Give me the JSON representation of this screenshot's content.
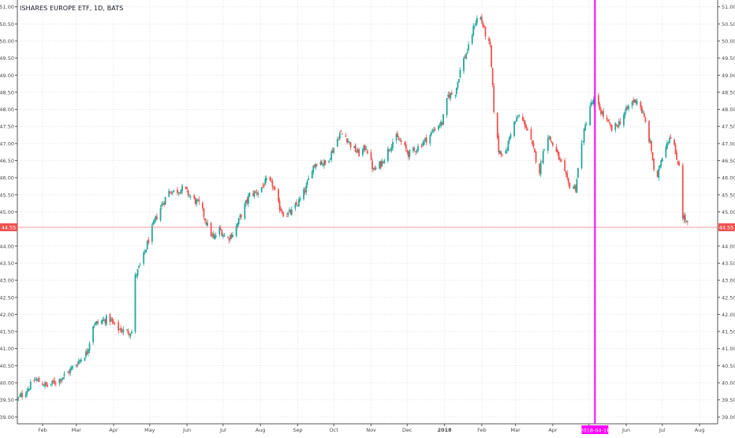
{
  "chart_data": {
    "type": "candlestick",
    "title": "ISHARES EUROPE ETF, 1D, BATS",
    "xlabel": "",
    "ylabel": "",
    "ylim": [
      38.8,
      51.2
    ],
    "y_ticks": [
      39.0,
      39.5,
      40.0,
      40.5,
      41.0,
      41.5,
      42.0,
      42.5,
      43.0,
      43.5,
      44.0,
      44.5,
      45.0,
      45.5,
      46.0,
      46.5,
      47.0,
      47.5,
      48.0,
      48.5,
      49.0,
      49.5,
      50.0,
      50.5,
      51.0
    ],
    "x_ticks": [
      {
        "label": "Feb",
        "day": 21
      },
      {
        "label": "Mar",
        "day": 49
      },
      {
        "label": "Apr",
        "day": 80
      },
      {
        "label": "May",
        "day": 110
      },
      {
        "label": "Jun",
        "day": 141
      },
      {
        "label": "Jul",
        "day": 171
      },
      {
        "label": "Aug",
        "day": 202
      },
      {
        "label": "Sep",
        "day": 233
      },
      {
        "label": "Oct",
        "day": 263
      },
      {
        "label": "Nov",
        "day": 294
      },
      {
        "label": "Dec",
        "day": 324
      },
      {
        "label": "2018",
        "day": 355
      },
      {
        "label": "Feb",
        "day": 386
      },
      {
        "label": "Mar",
        "day": 414
      },
      {
        "label": "Apr",
        "day": 445
      },
      {
        "label": "May",
        "day": 475
      },
      {
        "label": "Jun",
        "day": 506
      },
      {
        "label": "Jul",
        "day": 536
      },
      {
        "label": "Aug",
        "day": 567
      }
    ],
    "xrange": [
      0,
      582
    ],
    "anchors": [
      {
        "day": 0,
        "close": 39.5
      },
      {
        "day": 8,
        "close": 39.8
      },
      {
        "day": 15,
        "close": 40.1
      },
      {
        "day": 25,
        "close": 39.9
      },
      {
        "day": 35,
        "close": 40.1
      },
      {
        "day": 42,
        "close": 40.3
      },
      {
        "day": 50,
        "close": 40.6
      },
      {
        "day": 58,
        "close": 40.9
      },
      {
        "day": 63,
        "close": 41.7
      },
      {
        "day": 70,
        "close": 41.8
      },
      {
        "day": 76,
        "close": 41.9
      },
      {
        "day": 82,
        "close": 41.6
      },
      {
        "day": 90,
        "close": 41.5
      },
      {
        "day": 95,
        "close": 41.5
      },
      {
        "day": 98,
        "close": 43.1
      },
      {
        "day": 104,
        "close": 43.6
      },
      {
        "day": 110,
        "close": 44.3
      },
      {
        "day": 115,
        "close": 44.8
      },
      {
        "day": 120,
        "close": 45.2
      },
      {
        "day": 126,
        "close": 45.6
      },
      {
        "day": 132,
        "close": 45.6
      },
      {
        "day": 138,
        "close": 45.7
      },
      {
        "day": 145,
        "close": 45.4
      },
      {
        "day": 152,
        "close": 45.2
      },
      {
        "day": 158,
        "close": 44.6
      },
      {
        "day": 163,
        "close": 44.2
      },
      {
        "day": 168,
        "close": 44.5
      },
      {
        "day": 174,
        "close": 44.2
      },
      {
        "day": 180,
        "close": 44.4
      },
      {
        "day": 187,
        "close": 45.0
      },
      {
        "day": 193,
        "close": 45.5
      },
      {
        "day": 200,
        "close": 45.6
      },
      {
        "day": 207,
        "close": 45.9
      },
      {
        "day": 212,
        "close": 45.8
      },
      {
        "day": 217,
        "close": 45.2
      },
      {
        "day": 222,
        "close": 44.9
      },
      {
        "day": 228,
        "close": 45.0
      },
      {
        "day": 234,
        "close": 45.3
      },
      {
        "day": 240,
        "close": 45.7
      },
      {
        "day": 245,
        "close": 46.3
      },
      {
        "day": 250,
        "close": 46.5
      },
      {
        "day": 256,
        "close": 46.4
      },
      {
        "day": 262,
        "close": 46.8
      },
      {
        "day": 268,
        "close": 47.3
      },
      {
        "day": 273,
        "close": 47.2
      },
      {
        "day": 278,
        "close": 46.9
      },
      {
        "day": 284,
        "close": 46.7
      },
      {
        "day": 290,
        "close": 46.9
      },
      {
        "day": 296,
        "close": 46.2
      },
      {
        "day": 302,
        "close": 46.4
      },
      {
        "day": 308,
        "close": 46.8
      },
      {
        "day": 314,
        "close": 47.2
      },
      {
        "day": 320,
        "close": 47.0
      },
      {
        "day": 325,
        "close": 46.7
      },
      {
        "day": 330,
        "close": 46.8
      },
      {
        "day": 336,
        "close": 47.0
      },
      {
        "day": 342,
        "close": 47.2
      },
      {
        "day": 348,
        "close": 47.5
      },
      {
        "day": 353,
        "close": 47.6
      },
      {
        "day": 358,
        "close": 48.4
      },
      {
        "day": 364,
        "close": 48.5
      },
      {
        "day": 369,
        "close": 49.3
      },
      {
        "day": 375,
        "close": 49.8
      },
      {
        "day": 380,
        "close": 50.5
      },
      {
        "day": 384,
        "close": 50.8
      },
      {
        "day": 389,
        "close": 50.2
      },
      {
        "day": 393,
        "close": 49.8
      },
      {
        "day": 396,
        "close": 48.0
      },
      {
        "day": 400,
        "close": 46.8
      },
      {
        "day": 406,
        "close": 46.7
      },
      {
        "day": 411,
        "close": 47.5
      },
      {
        "day": 417,
        "close": 47.8
      },
      {
        "day": 423,
        "close": 47.5
      },
      {
        "day": 429,
        "close": 46.8
      },
      {
        "day": 434,
        "close": 46.2
      },
      {
        "day": 440,
        "close": 47.3
      },
      {
        "day": 446,
        "close": 46.9
      },
      {
        "day": 452,
        "close": 46.4
      },
      {
        "day": 458,
        "close": 45.8
      },
      {
        "day": 464,
        "close": 45.7
      },
      {
        "day": 468,
        "close": 46.8
      },
      {
        "day": 472,
        "close": 47.5
      },
      {
        "day": 476,
        "close": 48.1
      },
      {
        "day": 480,
        "close": 48.3
      },
      {
        "day": 484,
        "close": 48.0
      },
      {
        "day": 489,
        "close": 47.7
      },
      {
        "day": 494,
        "close": 47.4
      },
      {
        "day": 500,
        "close": 47.6
      },
      {
        "day": 505,
        "close": 47.9
      },
      {
        "day": 510,
        "close": 48.2
      },
      {
        "day": 516,
        "close": 48.3
      },
      {
        "day": 522,
        "close": 47.6
      },
      {
        "day": 527,
        "close": 46.8
      },
      {
        "day": 531,
        "close": 45.7
      },
      {
        "day": 534,
        "close": 46.4
      },
      {
        "day": 538,
        "close": 46.9
      },
      {
        "day": 542,
        "close": 47.2
      },
      {
        "day": 545,
        "close": 47.3
      },
      {
        "day": 547,
        "close": 46.6
      },
      {
        "day": 550,
        "close": 46.4
      },
      {
        "day": 553,
        "close": 44.9
      },
      {
        "day": 556,
        "close": 44.7
      },
      {
        "day": 558,
        "close": 44.55
      }
    ],
    "last_price": {
      "value": 44.55,
      "label": "44.55"
    },
    "marker": {
      "day": 480,
      "label": "2018-04-18"
    },
    "colors": {
      "up": "#26a69a",
      "down": "#ef5350",
      "line": "#f77c80",
      "marker": "#ff00ff",
      "grid": "#e0e3eb",
      "text": "#4a4a4a"
    }
  }
}
